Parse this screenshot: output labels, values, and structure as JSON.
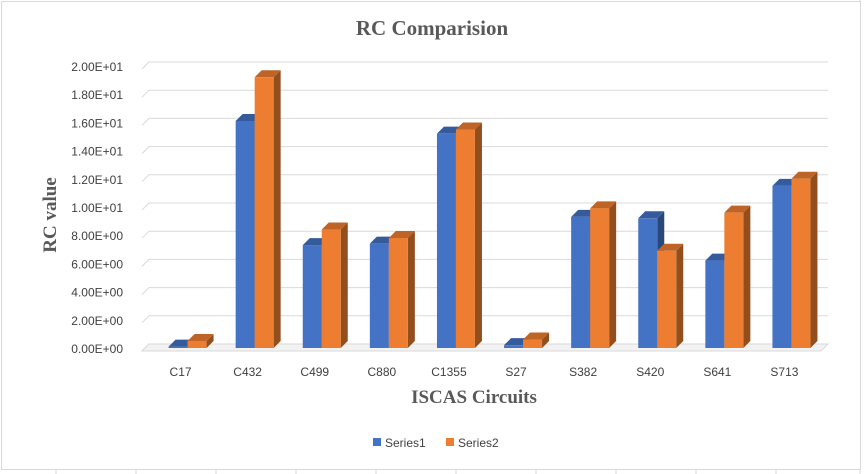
{
  "chart_data": {
    "type": "bar",
    "title": "RC Comparision",
    "xlabel": "ISCAS Circuits",
    "ylabel": "RC value",
    "categories": [
      "C17",
      "C432",
      "C499",
      "C880",
      "C1355",
      "S27",
      "S382",
      "S420",
      "S641",
      "S713"
    ],
    "series": [
      {
        "name": "Series1",
        "color": "#4472c4",
        "values": [
          0.1,
          16.1,
          7.3,
          7.4,
          15.2,
          0.2,
          9.3,
          9.2,
          6.2,
          11.5
        ]
      },
      {
        "name": "Series2",
        "color": "#ed7d31",
        "values": [
          0.5,
          19.2,
          8.4,
          7.8,
          15.5,
          0.6,
          9.9,
          6.9,
          9.6,
          12.0
        ]
      }
    ],
    "ylim": [
      0,
      20
    ],
    "yticks": [
      "0.00E+00",
      "2.00E+00",
      "4.00E+00",
      "6.00E+00",
      "8.00E+00",
      "1.00E+01",
      "1.20E+01",
      "1.40E+01",
      "1.60E+01",
      "1.80E+01",
      "2.00E+01"
    ],
    "grid": true,
    "legend_position": "bottom"
  }
}
